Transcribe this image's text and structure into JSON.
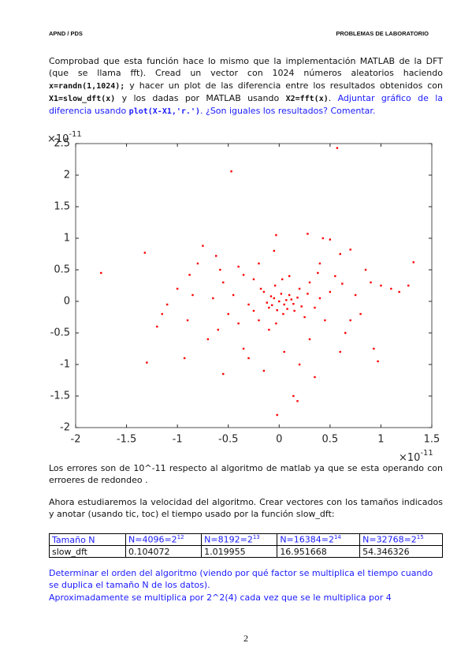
{
  "header": {
    "left": "APND / PDS",
    "right": "PROBLEMAS DE LABORATORIO"
  },
  "intro": [
    "Comprobad que esta función hace lo mismo que la implementación MATLAB de la DFT (que se llama fft). Cread un vector con 1024 números aleatorios haciendo ",
    "x=randn(1,1024);",
    " y hacer un plot de las diferencia entre los resultados obtenidos con ",
    "X1=slow_dft(x)",
    " y los dadas por MATLAB usando ",
    "X2=fft(x)",
    ". ",
    "Adjuntar gráfico de la diferencia usando ",
    "plot(X-X1,'r.')",
    ". ¿Son iguales los resultados? Comentar."
  ],
  "chart_data": {
    "type": "scatter",
    "color": "#ff0000",
    "y_exponent": {
      "base": "×10",
      "exp": "-11"
    },
    "x_exponent": {
      "base": "×10",
      "exp": "-11"
    },
    "xlim": [
      -2,
      1.5
    ],
    "xticks": [
      -2,
      -1.5,
      -1,
      -0.5,
      0,
      0.5,
      1,
      1.5
    ],
    "ylim": [
      -2,
      2.5
    ],
    "yticks": [
      -2,
      -1.5,
      -1,
      -0.5,
      0,
      0.5,
      1,
      1.5,
      2,
      2.5
    ],
    "grid": false,
    "x": [
      -1.75,
      -1.32,
      -1.3,
      -0.47,
      0.57,
      1.32,
      1.27,
      -0.02,
      0.18,
      0.14,
      -0.55,
      -0.93,
      0.97,
      0.93,
      1.1,
      1.18,
      1.0,
      -1.2,
      -1.15,
      -1.1,
      -0.75,
      -0.62,
      0.28,
      0.43,
      -0.03,
      0.5,
      0.6,
      0.7,
      0.35,
      -0.88,
      -0.85,
      -0.9,
      -0.7,
      -0.6,
      -0.4,
      -0.35,
      -0.25,
      -0.2,
      -0.15,
      -0.1,
      -0.05,
      0,
      0.05,
      0.1,
      0.15,
      0.2,
      0.25,
      0.3,
      0.35,
      0.4,
      0.45,
      0.55,
      0.65,
      0.75,
      0.8,
      0.85,
      -0.3,
      -0.45,
      -0.5,
      -0.55,
      -0.65,
      0.02,
      -0.08,
      0.08,
      0.12,
      -0.12,
      0.18,
      -0.18,
      0.22,
      0.04,
      -0.04,
      0.1,
      -0.1,
      0.3,
      -0.2,
      0.05,
      -0.05,
      0.4,
      -0.3,
      0.2,
      -0.15,
      0.6,
      -0.8,
      0.9,
      -1.0,
      0.07,
      -0.07,
      0.14,
      -0.02,
      0.28,
      -0.25,
      0.5,
      -0.4,
      0.62,
      0.7,
      -0.58,
      0.38,
      -0.35,
      0.03,
      -0.03
    ],
    "values": [
      0.45,
      0.77,
      -0.97,
      2.06,
      2.43,
      0.62,
      0.25,
      -1.8,
      -1.58,
      -1.5,
      -1.15,
      -0.9,
      -0.95,
      -0.75,
      0.2,
      0.15,
      0.25,
      -0.4,
      -0.2,
      -0.05,
      0.88,
      0.72,
      1.07,
      1.0,
      1.05,
      0.98,
      0.75,
      0.82,
      -1.2,
      0.42,
      0.1,
      -0.3,
      -0.6,
      -0.45,
      0.55,
      -0.75,
      0.35,
      -0.3,
      0.15,
      -0.1,
      0.05,
      0,
      -0.05,
      0.1,
      -0.15,
      0.2,
      -0.25,
      0.3,
      -0.1,
      0.05,
      -0.3,
      0.4,
      -0.5,
      0.1,
      -0.2,
      0.5,
      -0.05,
      0.1,
      -0.2,
      0.3,
      0.05,
      0.12,
      0.08,
      -0.12,
      0.03,
      -0.02,
      0.06,
      0.2,
      -0.08,
      -0.2,
      0.25,
      0.4,
      -0.45,
      -0.6,
      0.6,
      -0.8,
      0.8,
      0.6,
      -0.9,
      -1.0,
      -1.1,
      -0.8,
      0.6,
      0.3,
      0.2,
      0.02,
      -0.06,
      -0.04,
      -0.14,
      0.12,
      -0.15,
      0.15,
      -0.35,
      0.28,
      -0.3,
      0.5,
      0.45,
      0.42,
      0.35,
      -0.35
    ]
  },
  "errors_text": "Los errores son de 10^-11 respecto al algoritmo de matlab ya que se esta operando con erroeres de redondeo .",
  "speed_text": "Ahora estudiaremos la velocidad del algoritmo. Crear vectores con los tamaños indicados y anotar (usando tic, toc) el tiempo usado por la función slow_dft:",
  "table": {
    "header": [
      "Tamaño N",
      {
        "base": "N=4096=2",
        "exp": "12"
      },
      {
        "base": "N=8192=2",
        "exp": "13"
      },
      {
        "base": "N=16384=2",
        "exp": "14"
      },
      {
        "base": "N=32768=2",
        "exp": "15"
      }
    ],
    "rows": [
      [
        "slow_dft",
        "0.104072",
        "1.019955",
        "16.951668",
        "54.346326"
      ]
    ]
  },
  "order_question": "Determinar el orden del algoritmo (viendo por qué factor se multiplica el tiempo cuando se duplica el tamaño N de los datos).",
  "order_answer": "Aproximadamente se multiplica por 2^2(4) cada vez que se le multiplica por 4",
  "page_number": "2"
}
